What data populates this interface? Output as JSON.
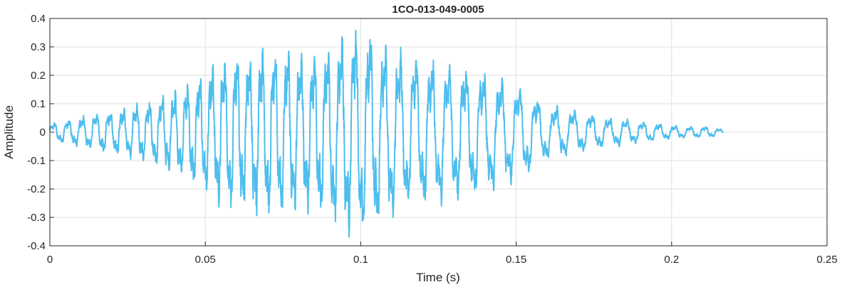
{
  "chart_data": {
    "type": "line",
    "title": "1CO-013-049-0005",
    "xlabel": "Time (s)",
    "ylabel": "Amplitude",
    "xlim": [
      0,
      0.25
    ],
    "ylim": [
      -0.4,
      0.4
    ],
    "xticks": [
      0,
      0.05,
      0.1,
      0.15,
      0.2,
      0.25
    ],
    "xtick_labels": [
      "0",
      "0.05",
      "0.1",
      "0.15",
      "0.2",
      "0.25"
    ],
    "yticks": [
      -0.4,
      -0.3,
      -0.2,
      -0.1,
      0,
      0.1,
      0.2,
      0.3,
      0.4
    ],
    "ytick_labels": [
      "-0.4",
      "-0.3",
      "-0.2",
      "-0.1",
      "0",
      "0.1",
      "0.2",
      "0.3",
      "0.4"
    ],
    "grid": true,
    "line_color": "#4DBEEE",
    "series": [
      {
        "x": [
          0,
          0.004,
          0.008,
          0.012,
          0.016,
          0.02,
          0.024,
          0.028,
          0.032,
          0.036,
          0.04,
          0.044,
          0.048,
          0.052,
          0.056,
          0.06,
          0.064,
          0.068,
          0.072,
          0.076,
          0.08,
          0.084,
          0.088,
          0.092,
          0.096,
          0.1,
          0.104,
          0.108,
          0.112,
          0.116,
          0.12,
          0.124,
          0.128,
          0.132,
          0.136,
          0.14,
          0.144,
          0.148,
          0.152,
          0.156,
          0.16,
          0.164,
          0.168,
          0.172,
          0.176,
          0.18,
          0.184,
          0.188,
          0.192,
          0.196,
          0.2,
          0.204,
          0.208,
          0.212,
          0.2165
        ],
        "envelope": [
          0.03,
          0.04,
          0.05,
          0.06,
          0.07,
          0.075,
          0.085,
          0.1,
          0.11,
          0.13,
          0.15,
          0.17,
          0.2,
          0.24,
          0.27,
          0.28,
          0.28,
          0.3,
          0.31,
          0.3,
          0.28,
          0.29,
          0.3,
          0.33,
          0.37,
          0.38,
          0.36,
          0.32,
          0.3,
          0.28,
          0.27,
          0.26,
          0.25,
          0.24,
          0.23,
          0.22,
          0.2,
          0.18,
          0.16,
          0.13,
          0.1,
          0.09,
          0.08,
          0.07,
          0.06,
          0.05,
          0.05,
          0.04,
          0.035,
          0.03,
          0.025,
          0.02,
          0.02,
          0.02,
          0.01
        ]
      }
    ]
  }
}
